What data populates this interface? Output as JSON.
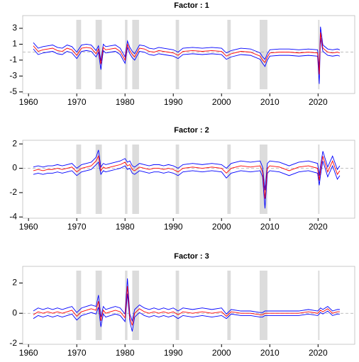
{
  "chart_data": [
    {
      "type": "line",
      "title": "Factor : 1",
      "x": [
        1961,
        1962,
        1963,
        1964,
        1965,
        1966,
        1967,
        1968,
        1969,
        1970,
        1971,
        1972,
        1973,
        1974,
        1974.5,
        1975,
        1975.5,
        1976,
        1977,
        1978,
        1979,
        1980,
        1980.5,
        1981,
        1981.5,
        1982,
        1983,
        1984,
        1985,
        1986,
        1987,
        1988,
        1989,
        1990,
        1991,
        1992,
        1994,
        1996,
        1998,
        2000,
        2001,
        2002,
        2004,
        2006,
        2008,
        2008.5,
        2009,
        2009.5,
        2010,
        2012,
        2014,
        2016,
        2018,
        2019.9,
        2020.25,
        2020.5,
        2021,
        2022,
        2023,
        2024,
        2024.5
      ],
      "series": [
        {
          "color": "#0000ff",
          "values": [
            1.2,
            0.5,
            0.7,
            0.8,
            0.9,
            0.6,
            0.5,
            0.9,
            0.7,
            0.0,
            0.9,
            1.0,
            0.9,
            0.2,
            0.8,
            -1.1,
            1.0,
            0.7,
            0.8,
            0.9,
            0.5,
            -0.6,
            1.4,
            0.6,
            0.1,
            -0.2,
            0.9,
            0.8,
            0.5,
            0.4,
            0.6,
            0.5,
            0.4,
            0.3,
            0.0,
            0.5,
            0.6,
            0.5,
            0.6,
            0.5,
            -0.1,
            0.2,
            0.5,
            0.4,
            -0.1,
            -0.6,
            -0.9,
            -0.2,
            0.3,
            0.4,
            0.4,
            0.3,
            0.4,
            0.3,
            -2.0,
            3.2,
            0.9,
            0.4,
            0.3,
            0.4,
            0.3
          ]
        },
        {
          "color": "#0000ff",
          "values": [
            0.4,
            -0.3,
            -0.1,
            0.0,
            0.1,
            -0.2,
            -0.3,
            0.1,
            -0.1,
            -0.8,
            0.1,
            0.2,
            0.1,
            -0.6,
            0.0,
            -2.2,
            0.2,
            -0.1,
            0.0,
            0.1,
            -0.3,
            -1.4,
            0.6,
            -0.2,
            -0.7,
            -1.0,
            0.1,
            0.0,
            -0.3,
            -0.4,
            -0.2,
            -0.3,
            -0.4,
            -0.5,
            -0.8,
            -0.3,
            -0.2,
            -0.3,
            -0.2,
            -0.3,
            -0.9,
            -0.6,
            -0.3,
            -0.4,
            -0.9,
            -1.4,
            -1.8,
            -1.0,
            -0.5,
            -0.4,
            -0.4,
            -0.5,
            -0.4,
            -0.5,
            -4.0,
            1.8,
            0.1,
            -0.4,
            -0.5,
            -0.4,
            -0.5
          ]
        },
        {
          "color": "#ff0000",
          "values": [
            0.8,
            0.1,
            0.3,
            0.4,
            0.5,
            0.2,
            0.1,
            0.5,
            0.3,
            -0.4,
            0.5,
            0.6,
            0.5,
            -0.2,
            0.4,
            -1.5,
            0.6,
            0.3,
            0.4,
            0.5,
            0.1,
            -1.0,
            1.0,
            0.2,
            -0.3,
            -0.6,
            0.5,
            0.4,
            0.1,
            0.0,
            0.2,
            0.1,
            0.0,
            -0.1,
            -0.4,
            0.1,
            0.2,
            0.1,
            0.2,
            0.1,
            -0.5,
            -0.2,
            0.1,
            0.0,
            -0.5,
            -1.0,
            -1.3,
            -0.6,
            -0.1,
            0.0,
            0.0,
            -0.1,
            0.0,
            -0.1,
            -2.8,
            2.5,
            0.5,
            0.0,
            -0.1,
            0.0,
            -0.1
          ]
        }
      ],
      "shaded": [
        [
          1969.9,
          1970.9
        ],
        [
          1973.9,
          1975.2
        ],
        [
          1980.0,
          1980.5
        ],
        [
          1981.5,
          1982.9
        ],
        [
          1990.5,
          1991.2
        ],
        [
          2001.2,
          2001.9
        ],
        [
          2007.9,
          2009.5
        ],
        [
          2020.0,
          2020.3
        ]
      ],
      "hline": 0,
      "xlim": [
        1958.8,
        2027.6
      ],
      "xticks": [
        1960,
        1970,
        1980,
        1990,
        2000,
        2010,
        2020
      ],
      "ylim": [
        -5.2,
        4.6
      ],
      "yticks": [
        3,
        1,
        -1,
        -3,
        -5
      ]
    },
    {
      "type": "line",
      "title": "Factor : 2",
      "x": [
        1961,
        1962,
        1963,
        1964,
        1965,
        1966,
        1967,
        1968,
        1969,
        1970,
        1971,
        1972,
        1973,
        1974,
        1974.5,
        1975,
        1975.5,
        1976,
        1977,
        1978,
        1979,
        1980,
        1980.5,
        1981,
        1981.5,
        1982,
        1983,
        1984,
        1985,
        1986,
        1987,
        1988,
        1989,
        1990,
        1991,
        1992,
        1994,
        1996,
        1998,
        2000,
        2001,
        2002,
        2004,
        2006,
        2008,
        2008.5,
        2009,
        2009.5,
        2010,
        2012,
        2014,
        2016,
        2018,
        2019.9,
        2020.25,
        2020.5,
        2021,
        2022,
        2023,
        2024,
        2024.5
      ],
      "series": [
        {
          "color": "#0000ff",
          "values": [
            0.1,
            0.2,
            0.1,
            0.2,
            0.2,
            0.3,
            0.2,
            0.3,
            0.4,
            0.0,
            0.3,
            0.4,
            0.5,
            0.9,
            1.5,
            0.1,
            0.4,
            0.3,
            0.4,
            0.5,
            0.6,
            0.8,
            0.5,
            0.6,
            0.2,
            0.1,
            0.4,
            0.3,
            0.2,
            0.3,
            0.3,
            0.2,
            0.3,
            0.2,
            0.0,
            0.3,
            0.4,
            0.3,
            0.4,
            0.3,
            0.0,
            0.4,
            0.6,
            0.5,
            0.6,
            0.1,
            -1.8,
            0.4,
            0.6,
            0.5,
            0.2,
            0.5,
            0.6,
            0.4,
            -0.6,
            0.2,
            1.4,
            0.1,
            1.0,
            -0.1,
            0.2
          ]
        },
        {
          "color": "#0000ff",
          "values": [
            -0.5,
            -0.4,
            -0.5,
            -0.4,
            -0.4,
            -0.3,
            -0.4,
            -0.3,
            -0.2,
            -0.6,
            -0.3,
            -0.2,
            -0.1,
            0.3,
            0.5,
            -0.5,
            -0.2,
            -0.3,
            -0.2,
            -0.1,
            0.0,
            0.2,
            -0.1,
            0.0,
            -0.4,
            -0.5,
            -0.2,
            -0.3,
            -0.4,
            -0.3,
            -0.3,
            -0.4,
            -0.3,
            -0.4,
            -0.6,
            -0.3,
            -0.2,
            -0.3,
            -0.2,
            -0.3,
            -0.8,
            -0.4,
            -0.2,
            -0.3,
            -0.2,
            -0.7,
            -3.3,
            -0.4,
            -0.2,
            -0.3,
            -0.6,
            -0.3,
            -0.2,
            -0.4,
            -1.4,
            -0.6,
            0.6,
            -0.7,
            0.2,
            -0.9,
            -0.6
          ]
        },
        {
          "color": "#ff0000",
          "values": [
            -0.2,
            -0.1,
            -0.2,
            -0.1,
            -0.1,
            0.0,
            -0.1,
            0.0,
            0.1,
            -0.3,
            0.0,
            0.1,
            0.2,
            0.6,
            1.0,
            -0.2,
            0.1,
            0.0,
            0.1,
            0.2,
            0.3,
            0.5,
            0.2,
            0.3,
            -0.1,
            -0.2,
            0.1,
            0.0,
            -0.1,
            0.0,
            0.0,
            -0.1,
            0.0,
            -0.1,
            -0.3,
            0.0,
            0.1,
            0.0,
            0.1,
            0.0,
            -0.4,
            0.0,
            0.2,
            0.1,
            0.2,
            -0.3,
            -2.5,
            0.0,
            0.2,
            0.1,
            -0.2,
            0.1,
            0.2,
            0.0,
            -1.0,
            -0.2,
            1.0,
            -0.3,
            0.6,
            -0.5,
            -0.2
          ]
        }
      ],
      "shaded": [
        [
          1969.9,
          1970.9
        ],
        [
          1973.9,
          1975.2
        ],
        [
          1980.0,
          1980.5
        ],
        [
          1981.5,
          1982.9
        ],
        [
          1990.5,
          1991.2
        ],
        [
          2001.2,
          2001.9
        ],
        [
          2007.9,
          2009.5
        ],
        [
          2020.0,
          2020.3
        ]
      ],
      "hline": 0,
      "xlim": [
        1958.8,
        2027.6
      ],
      "xticks": [
        1960,
        1970,
        1980,
        1990,
        2000,
        2010,
        2020
      ],
      "ylim": [
        -4.1,
        2.3
      ],
      "yticks": [
        2,
        0,
        -2,
        -4
      ]
    },
    {
      "type": "line",
      "title": "Factor : 3",
      "x": [
        1961,
        1962,
        1963,
        1964,
        1965,
        1966,
        1967,
        1968,
        1969,
        1970,
        1971,
        1972,
        1973,
        1974,
        1974.5,
        1975,
        1975.5,
        1976,
        1977,
        1978,
        1979,
        1980,
        1980.5,
        1981,
        1981.5,
        1982,
        1983,
        1984,
        1985,
        1986,
        1987,
        1988,
        1989,
        1990,
        1991,
        1992,
        1994,
        1996,
        1998,
        2000,
        2001,
        2002,
        2004,
        2006,
        2008,
        2008.5,
        2009,
        2009.5,
        2010,
        2012,
        2014,
        2016,
        2018,
        2019.9,
        2020.25,
        2020.5,
        2021,
        2022,
        2023,
        2024,
        2024.5
      ],
      "series": [
        {
          "color": "#0000ff",
          "values": [
            0.15,
            0.35,
            0.25,
            0.35,
            0.25,
            0.35,
            0.25,
            0.35,
            0.45,
            0.05,
            0.35,
            0.45,
            0.55,
            0.45,
            1.2,
            -0.25,
            0.45,
            0.25,
            0.35,
            0.45,
            0.35,
            -0.05,
            2.3,
            -0.05,
            -0.5,
            0.25,
            0.55,
            0.35,
            0.25,
            0.35,
            0.25,
            0.35,
            0.25,
            0.35,
            0.15,
            0.35,
            0.25,
            0.35,
            0.25,
            0.35,
            -0.05,
            0.25,
            0.15,
            0.15,
            0.05,
            0.05,
            0.15,
            0.15,
            0.15,
            0.15,
            0.15,
            0.15,
            0.25,
            0.15,
            0.25,
            0.35,
            0.25,
            0.45,
            0.15,
            0.25,
            0.25
          ]
        },
        {
          "color": "#0000ff",
          "values": [
            -0.35,
            -0.15,
            -0.25,
            -0.15,
            -0.25,
            -0.15,
            -0.25,
            -0.15,
            -0.05,
            -0.45,
            -0.15,
            -0.05,
            0.05,
            -0.05,
            0.4,
            -0.9,
            -0.05,
            -0.25,
            -0.15,
            -0.05,
            -0.15,
            -0.55,
            1.3,
            -0.55,
            -1.2,
            -0.25,
            0.05,
            -0.15,
            -0.25,
            -0.15,
            -0.25,
            -0.15,
            -0.25,
            -0.15,
            -0.35,
            -0.15,
            -0.25,
            -0.15,
            -0.25,
            -0.15,
            -0.35,
            -0.05,
            -0.15,
            -0.15,
            -0.25,
            -0.25,
            -0.15,
            -0.15,
            -0.15,
            -0.15,
            -0.15,
            -0.15,
            -0.05,
            -0.15,
            -0.05,
            0.05,
            -0.05,
            0.15,
            -0.15,
            -0.05,
            -0.05
          ]
        },
        {
          "color": "#ff0000",
          "values": [
            -0.1,
            0.1,
            0.0,
            0.1,
            0.0,
            0.1,
            0.0,
            0.1,
            0.2,
            -0.2,
            0.1,
            0.2,
            0.3,
            0.2,
            0.8,
            -0.5,
            0.2,
            0.0,
            0.1,
            0.2,
            0.1,
            -0.3,
            1.8,
            -0.3,
            -0.8,
            0.0,
            0.3,
            0.1,
            0.0,
            0.1,
            0.0,
            0.1,
            0.0,
            0.1,
            -0.1,
            0.1,
            0.0,
            0.1,
            0.0,
            0.1,
            -0.2,
            0.1,
            0.0,
            0.0,
            -0.1,
            -0.1,
            0.0,
            0.0,
            0.0,
            0.0,
            0.0,
            0.0,
            0.1,
            0.0,
            0.1,
            0.2,
            0.1,
            0.3,
            0.0,
            0.1,
            0.1
          ]
        }
      ],
      "shaded": [
        [
          1969.9,
          1970.9
        ],
        [
          1973.9,
          1975.2
        ],
        [
          1980.0,
          1980.5
        ],
        [
          1981.5,
          1982.9
        ],
        [
          1990.5,
          1991.2
        ],
        [
          2001.2,
          2001.9
        ],
        [
          2007.9,
          2009.5
        ],
        [
          2020.0,
          2020.3
        ]
      ],
      "hline": 0,
      "xlim": [
        1958.8,
        2027.6
      ],
      "xticks": [
        1960,
        1970,
        1980,
        1990,
        2000,
        2010,
        2020
      ],
      "ylim": [
        -2.05,
        3.1
      ],
      "yticks": [
        2,
        0,
        -2
      ]
    }
  ]
}
